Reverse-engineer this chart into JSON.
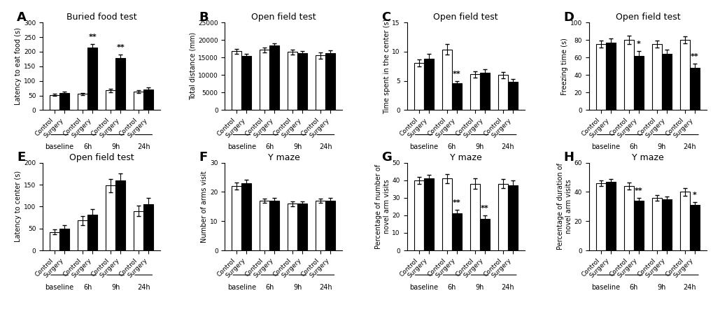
{
  "panels": {
    "A": {
      "title": "Buried food test",
      "ylabel": "Latency to eat food (s)",
      "ylim": [
        0,
        300
      ],
      "yticks": [
        0,
        50,
        100,
        150,
        200,
        250,
        300
      ],
      "control_means": [
        52,
        55,
        67,
        63
      ],
      "control_sems": [
        4,
        4,
        5,
        5
      ],
      "surgery_means": [
        59,
        215,
        178,
        70
      ],
      "surgery_sems": [
        5,
        12,
        12,
        8
      ],
      "sig_markers": [
        null,
        "**",
        "**",
        null
      ],
      "sig_on": [
        null,
        "surgery",
        "surgery",
        null
      ]
    },
    "B": {
      "title": "Open field test",
      "ylabel": "Total distance (mm)",
      "ylim": [
        0,
        25000
      ],
      "yticks": [
        0,
        5000,
        10000,
        15000,
        20000,
        25000
      ],
      "control_means": [
        16800,
        17200,
        16600,
        15600
      ],
      "control_sems": [
        700,
        700,
        700,
        900
      ],
      "surgery_means": [
        15500,
        18400,
        16200,
        16300
      ],
      "surgery_sems": [
        600,
        700,
        700,
        800
      ],
      "sig_markers": [
        null,
        null,
        null,
        null
      ],
      "sig_on": [
        null,
        null,
        null,
        null
      ]
    },
    "C": {
      "title": "Open field test",
      "ylabel": "Time spent in the center (s)",
      "ylim": [
        0,
        15
      ],
      "yticks": [
        0,
        5,
        10,
        15
      ],
      "control_means": [
        8.1,
        10.4,
        6.1,
        6.0
      ],
      "control_sems": [
        0.6,
        0.9,
        0.5,
        0.5
      ],
      "surgery_means": [
        8.8,
        4.6,
        6.4,
        4.8
      ],
      "surgery_sems": [
        0.8,
        0.4,
        0.6,
        0.5
      ],
      "sig_markers": [
        null,
        "**",
        null,
        null
      ],
      "sig_on": [
        null,
        "surgery",
        null,
        null
      ]
    },
    "D": {
      "title": "Open field test",
      "ylabel": "Freezing time (s)",
      "ylim": [
        0,
        100
      ],
      "yticks": [
        0,
        20,
        40,
        60,
        80,
        100
      ],
      "control_means": [
        75,
        80,
        75,
        80
      ],
      "control_sems": [
        4,
        5,
        4,
        4
      ],
      "surgery_means": [
        77,
        62,
        64,
        48
      ],
      "surgery_sems": [
        5,
        5,
        5,
        5
      ],
      "sig_markers": [
        null,
        "*",
        null,
        "**"
      ],
      "sig_on": [
        null,
        "surgery",
        null,
        "surgery"
      ]
    },
    "E": {
      "title": "Open field test",
      "ylabel": "Latency to center (s)",
      "ylim": [
        0,
        200
      ],
      "yticks": [
        0,
        50,
        100,
        150,
        200
      ],
      "control_means": [
        42,
        68,
        148,
        90
      ],
      "control_sems": [
        6,
        10,
        15,
        12
      ],
      "surgery_means": [
        50,
        82,
        160,
        105
      ],
      "surgery_sems": [
        7,
        12,
        16,
        14
      ],
      "sig_markers": [
        null,
        null,
        null,
        null
      ],
      "sig_on": [
        null,
        null,
        null,
        null
      ]
    },
    "F": {
      "title": "Y maze",
      "ylabel": "Number of arms visit",
      "ylim": [
        0,
        30
      ],
      "yticks": [
        0,
        10,
        20,
        30
      ],
      "control_means": [
        22,
        17,
        16,
        17
      ],
      "control_sems": [
        1.2,
        0.8,
        0.8,
        0.8
      ],
      "surgery_means": [
        23,
        17,
        16,
        17
      ],
      "surgery_sems": [
        1.2,
        0.9,
        0.8,
        0.9
      ],
      "sig_markers": [
        null,
        null,
        null,
        null
      ],
      "sig_on": [
        null,
        null,
        null,
        null
      ]
    },
    "G": {
      "title": "Y maze",
      "ylabel": "Percentage of number of\nnovel arm visits",
      "ylim": [
        0,
        50
      ],
      "yticks": [
        0,
        10,
        20,
        30,
        40,
        50
      ],
      "control_means": [
        40,
        41,
        38,
        38
      ],
      "control_sems": [
        2,
        2.5,
        3,
        2.5
      ],
      "surgery_means": [
        41,
        21,
        18,
        37
      ],
      "surgery_sems": [
        2,
        2,
        2,
        3
      ],
      "sig_markers": [
        null,
        "**",
        "**",
        null
      ],
      "sig_on": [
        null,
        "surgery",
        "surgery",
        null
      ]
    },
    "H": {
      "title": "Y maze",
      "ylabel": "Percentage of duration of\nnovel arm visits",
      "ylim": [
        0,
        60
      ],
      "yticks": [
        0,
        20,
        40,
        60
      ],
      "control_means": [
        46,
        44,
        36,
        40
      ],
      "control_sems": [
        2,
        2.5,
        2,
        2.5
      ],
      "surgery_means": [
        47,
        34,
        35,
        31
      ],
      "surgery_sems": [
        2,
        2,
        2,
        2
      ],
      "sig_markers": [
        null,
        "**",
        null,
        "*"
      ],
      "sig_on": [
        null,
        "surgery",
        null,
        "surgery"
      ]
    }
  },
  "group_labels": [
    "baseline",
    "6h",
    "9h",
    "24h"
  ],
  "control_color": "white",
  "surgery_color": "black",
  "bar_edge_color": "black",
  "bar_width": 0.35,
  "panel_label_fontsize": 13,
  "title_fontsize": 9,
  "ylabel_fontsize": 7,
  "tick_fontsize": 6.5,
  "sig_fontsize": 8,
  "group_label_fontsize": 7
}
